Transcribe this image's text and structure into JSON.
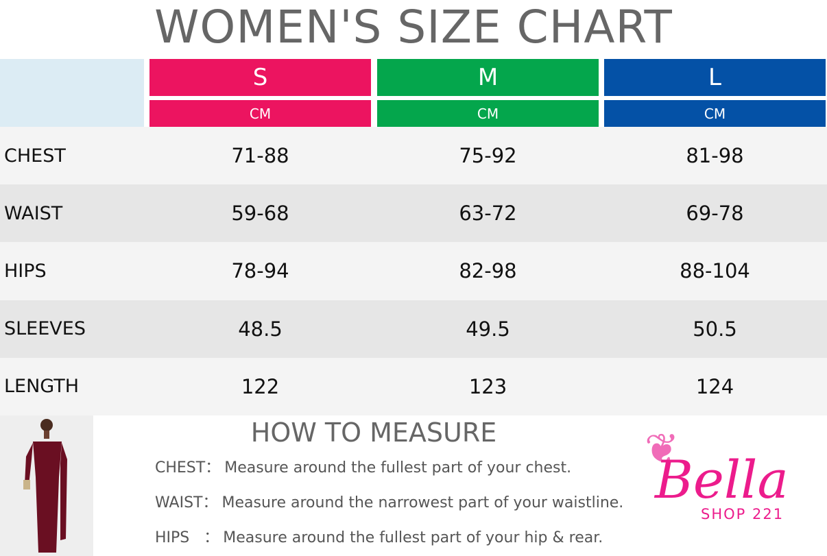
{
  "title": "WOMEN'S SIZE CHART",
  "table": {
    "sizes": [
      {
        "name": "S",
        "unit": "CM",
        "color": "#ec1460"
      },
      {
        "name": "M",
        "unit": "CM",
        "color": "#04a64c"
      },
      {
        "name": "L",
        "unit": "CM",
        "color": "#0451a6"
      }
    ],
    "rows": [
      [
        "CHEST",
        "71-88",
        "75-92",
        "81-98"
      ],
      [
        "WAIST",
        "59-68",
        "63-72",
        "69-78"
      ],
      [
        "HIPS",
        "78-94",
        "82-98",
        "88-104"
      ],
      [
        "SLEEVES",
        "48.5",
        "49.5",
        "50.5"
      ],
      [
        "LENGTH",
        "122",
        "123",
        "124"
      ]
    ]
  },
  "how_to_measure": {
    "title": "HOW TO MEASURE",
    "items": [
      {
        "label": "CHEST：",
        "text": "Measure around the fullest part of your chest."
      },
      {
        "label": "WAIST：",
        "text": "Measure around the narrowest part of your waistline."
      },
      {
        "label": "HIPS   ：",
        "text": "Measure around the fullest part of your hip & rear."
      }
    ]
  },
  "logo": {
    "name": "Bella",
    "subtitle": "SHOP 221"
  }
}
